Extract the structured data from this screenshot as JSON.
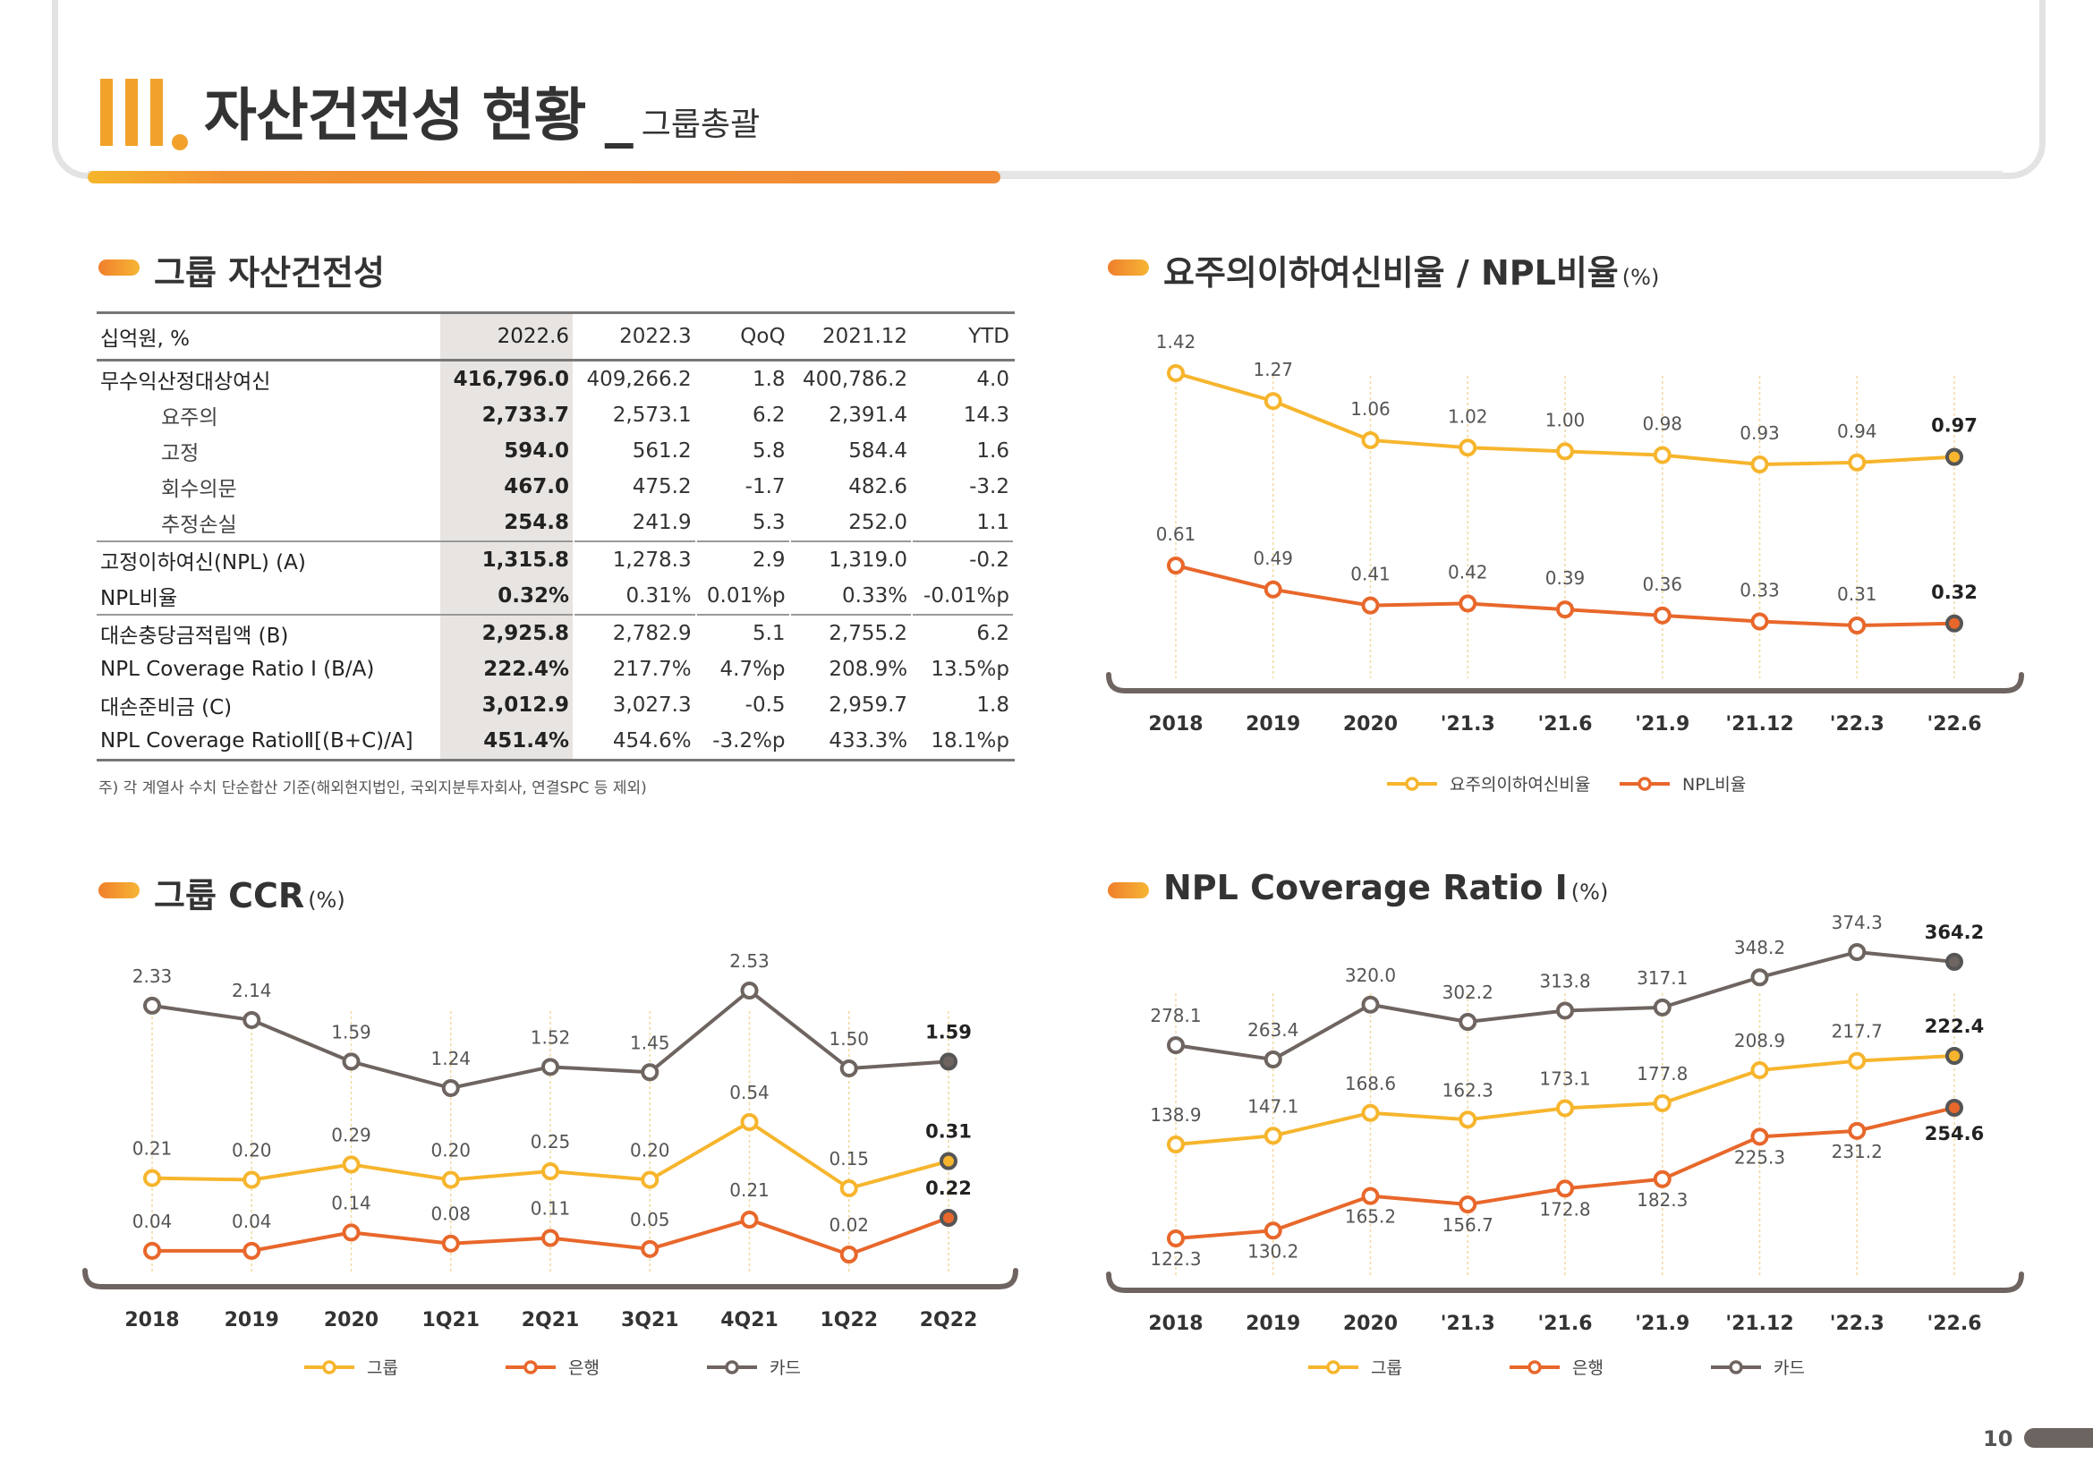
{
  "header": {
    "title": "자산건전성 현황",
    "separator": "_",
    "subtitle": "그룹총괄"
  },
  "asset_table": {
    "section_title": "그룹 자산건전성",
    "columns": [
      "십억원, %",
      "2022.6",
      "2022.3",
      "QoQ",
      "2021.12",
      "YTD"
    ],
    "rows": [
      {
        "label": "무수익산정대상여신",
        "values": [
          "416,796.0",
          "409,266.2",
          "1.8",
          "400,786.2",
          "4.0"
        ]
      },
      {
        "label": "요주의",
        "values": [
          "2,733.7",
          "2,573.1",
          "6.2",
          "2,391.4",
          "14.3"
        ]
      },
      {
        "label": "고정",
        "values": [
          "594.0",
          "561.2",
          "5.8",
          "584.4",
          "1.6"
        ]
      },
      {
        "label": "회수의문",
        "values": [
          "467.0",
          "475.2",
          "-1.7",
          "482.6",
          "-3.2"
        ]
      },
      {
        "label": "추정손실",
        "values": [
          "254.8",
          "241.9",
          "5.3",
          "252.0",
          "1.1"
        ]
      },
      {
        "label": "고정이하여신(NPL) (A)",
        "values": [
          "1,315.8",
          "1,278.3",
          "2.9",
          "1,319.0",
          "-0.2"
        ]
      },
      {
        "label": "NPL비율",
        "values": [
          "0.32%",
          "0.31%",
          "0.01%p",
          "0.33%",
          "-0.01%p"
        ]
      },
      {
        "label": "대손충당금적립액 (B)",
        "values": [
          "2,925.8",
          "2,782.9",
          "5.1",
          "2,755.2",
          "6.2"
        ]
      },
      {
        "label": "NPL Coverage Ratio Ⅰ (B/A)",
        "values": [
          "222.4%",
          "217.7%",
          "4.7%p",
          "208.9%",
          "13.5%p"
        ]
      },
      {
        "label": "대손준비금 (C)",
        "values": [
          "3,012.9",
          "3,027.3",
          "-0.5",
          "2,959.7",
          "1.8"
        ]
      },
      {
        "label": "NPL Coverage  RatioⅡ[(B+C)/A]",
        "values": [
          "451.4%",
          "454.6%",
          "-3.2%p",
          "433.3%",
          "18.1%p"
        ]
      }
    ],
    "note": "주) 각 계열사 수치 단순합산 기준(해외현지법인, 국외지분투자회사, 연결SPC 등 제외)"
  },
  "colors": {
    "yellow": "#f6b52d",
    "orange": "#e8672b",
    "gray": "#6e6460",
    "title_gradient_start": "#f5b52c",
    "title_gradient_end": "#f08a34"
  },
  "chart_data": [
    {
      "id": "npl_ratio",
      "type": "line",
      "title": "요주의이하여신비율 / NPL비율",
      "unit": "(%)",
      "categories": [
        "2018",
        "2019",
        "2020",
        "'21.3",
        "'21.6",
        "'21.9",
        "'21.12",
        "'22.3",
        "'22.6"
      ],
      "series": [
        {
          "name": "요주의이하여신비율",
          "color": "#f6b52d",
          "values": [
            1.42,
            1.27,
            1.06,
            1.02,
            1.0,
            0.98,
            0.93,
            0.94,
            0.97
          ],
          "labels": [
            "1.42",
            "1.27",
            "1.06",
            "1.02",
            "1.00",
            "0.98",
            "0.93",
            "0.94",
            "0.97"
          ]
        },
        {
          "name": "NPL비율",
          "color": "#e8672b",
          "values": [
            0.61,
            0.49,
            0.41,
            0.42,
            0.39,
            0.36,
            0.33,
            0.31,
            0.32
          ],
          "labels": [
            "0.61",
            "0.49",
            "0.41",
            "0.42",
            "0.39",
            "0.36",
            "0.33",
            "0.31",
            "0.32"
          ]
        }
      ],
      "ylim": [
        0.2,
        1.55
      ],
      "legend_position": "bottom"
    },
    {
      "id": "ccr",
      "type": "line",
      "title": "그룹 CCR",
      "unit": "(%)",
      "categories": [
        "2018",
        "2019",
        "2020",
        "1Q21",
        "2Q21",
        "3Q21",
        "4Q21",
        "1Q22",
        "2Q22"
      ],
      "series": [
        {
          "name": "그룹",
          "color": "#f6b52d",
          "values": [
            0.21,
            0.2,
            0.29,
            0.2,
            0.25,
            0.2,
            0.54,
            0.15,
            0.31
          ],
          "labels": [
            "0.21",
            "0.20",
            "0.29",
            "0.20",
            "0.25",
            "0.20",
            "0.54",
            "0.15",
            "0.31"
          ]
        },
        {
          "name": "은행",
          "color": "#e8672b",
          "values": [
            0.04,
            0.04,
            0.14,
            0.08,
            0.11,
            0.05,
            0.21,
            0.02,
            0.22
          ],
          "labels": [
            "0.04",
            "0.04",
            "0.14",
            "0.08",
            "0.11",
            "0.05",
            "0.21",
            "0.02",
            "0.22"
          ]
        },
        {
          "name": "카드",
          "color": "#6e6460",
          "values": [
            2.33,
            2.14,
            1.59,
            1.24,
            1.52,
            1.45,
            2.53,
            1.5,
            1.59
          ],
          "labels": [
            "2.33",
            "2.14",
            "1.59",
            "1.24",
            "1.52",
            "1.45",
            "2.53",
            "1.50",
            "1.59"
          ]
        }
      ],
      "legend_position": "bottom"
    },
    {
      "id": "coverage",
      "type": "line",
      "title": "NPL Coverage Ratio Ⅰ",
      "unit": "(%)",
      "categories": [
        "2018",
        "2019",
        "2020",
        "'21.3",
        "'21.6",
        "'21.9",
        "'21.12",
        "'22.3",
        "'22.6"
      ],
      "series": [
        {
          "name": "그룹",
          "color": "#f6b52d",
          "values": [
            138.9,
            147.1,
            168.6,
            162.3,
            173.1,
            177.8,
            208.9,
            217.7,
            222.4
          ],
          "labels": [
            "138.9",
            "147.1",
            "168.6",
            "162.3",
            "173.1",
            "177.8",
            "208.9",
            "217.7",
            "222.4"
          ]
        },
        {
          "name": "은행",
          "color": "#e8672b",
          "values": [
            122.3,
            130.2,
            165.2,
            156.7,
            172.8,
            182.3,
            225.3,
            231.2,
            254.6
          ],
          "labels": [
            "122.3",
            "130.2",
            "165.2",
            "156.7",
            "172.8",
            "182.3",
            "225.3",
            "231.2",
            "254.6"
          ]
        },
        {
          "name": "카드",
          "color": "#6e6460",
          "values": [
            278.1,
            263.4,
            320.0,
            302.2,
            313.8,
            317.1,
            348.2,
            374.3,
            364.2
          ],
          "labels": [
            "278.1",
            "263.4",
            "320.0",
            "302.2",
            "313.8",
            "317.1",
            "348.2",
            "374.3",
            "364.2"
          ]
        }
      ],
      "legend_position": "bottom"
    }
  ],
  "page_number": "10"
}
